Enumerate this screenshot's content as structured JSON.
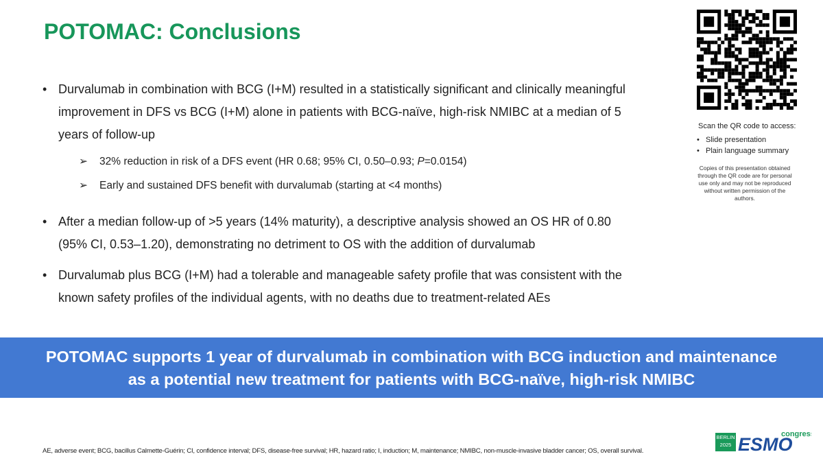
{
  "header": {
    "title": "POTOMAC: Conclusions"
  },
  "bullets": [
    {
      "text": "Durvalumab in combination with BCG (I+M) resulted in a statistically significant and clinically meaningful improvement in DFS vs BCG (I+M) alone in patients with BCG-naïve, high-risk NMIBC at a median of 5 years of follow-up",
      "sub": [
        {
          "parts": [
            "32% reduction in risk of a DFS event (HR 0.68; 95% CI, 0.50–0.93; ",
            "P",
            "=0.0154)"
          ]
        },
        {
          "parts": [
            "Early and sustained DFS benefit with durvalumab (starting at <4 months)"
          ]
        }
      ]
    },
    {
      "text": "After a median follow-up of >5 years (14% maturity), a descriptive analysis showed an OS HR of 0.80 (95% CI, 0.53–1.20), demonstrating no detriment to OS with the addition of durvalumab"
    },
    {
      "text": "Durvalumab plus BCG (I+M) had a tolerable and manageable safety profile that was consistent with the known safety profiles of the individual agents, with no deaths due to treatment-related AEs"
    }
  ],
  "qr_panel": {
    "heading": "Scan the QR code to access:",
    "items": [
      "Slide presentation",
      "Plain language summary"
    ],
    "notice": "Copies of this presentation obtained through the QR code are for personal use only and may not be reproduced without written permission of the authors."
  },
  "banner": {
    "lines": [
      "POTOMAC supports 1 year of durvalumab in combination with BCG induction and maintenance",
      "as a potential new treatment for patients with BCG-naïve, high-risk NMIBC"
    ]
  },
  "footnote": "AE, adverse event; BCG, bacillus Calmette-Guérin; CI, confidence interval; DFS, disease-free survival; HR, hazard ratio; I, induction; M, maintenance; NMIBC, non-muscle-invasive bladder cancer; OS, overall survival.",
  "logo": {
    "city": "BERLIN",
    "year": "2025",
    "brand": "ESMO",
    "event": "congress"
  }
}
